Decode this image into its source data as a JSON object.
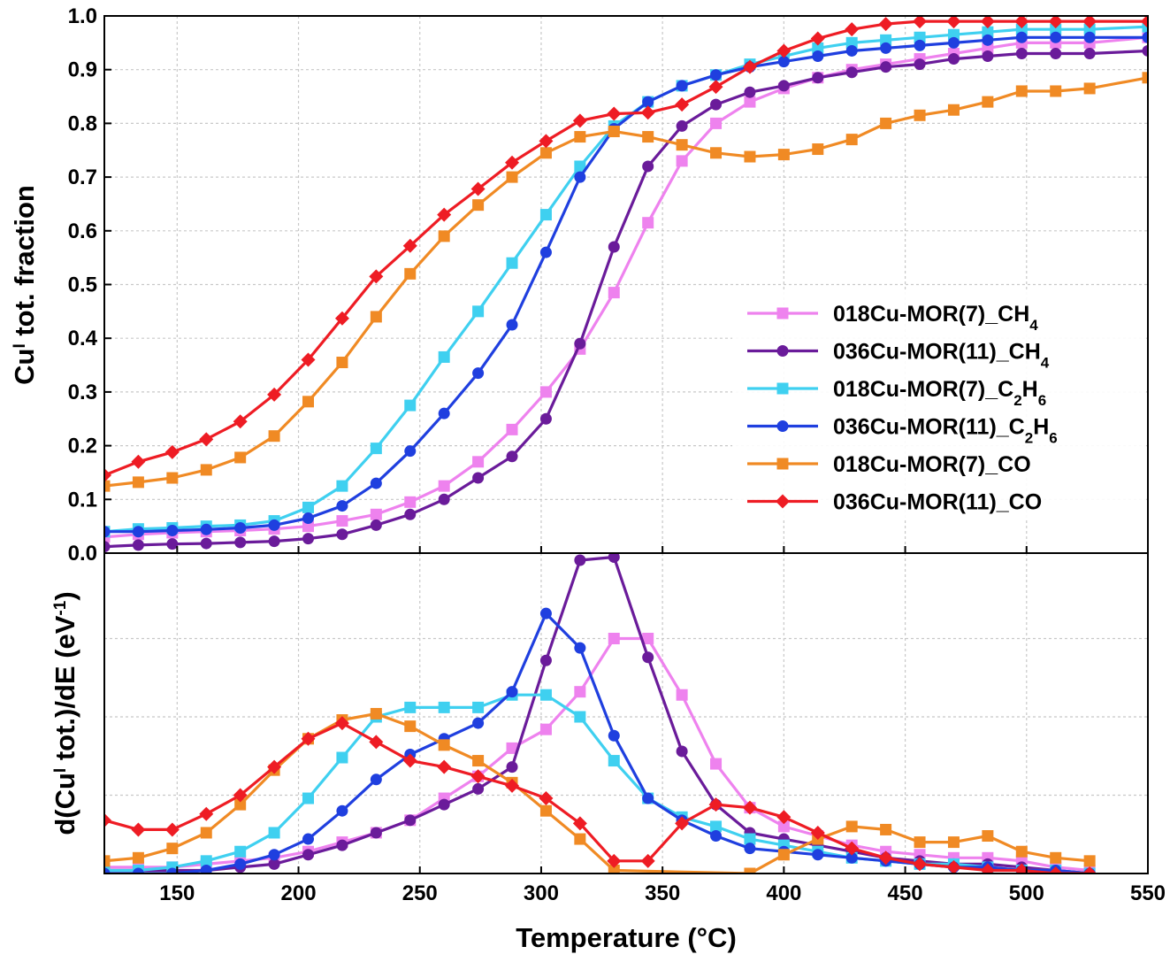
{
  "chart_data": [
    {
      "type": "line",
      "panel": "top",
      "ylabel": "Cu I tot. fraction",
      "ylabel_parts": {
        "main": "Cu",
        "sup": "I",
        "rest": " tot. fraction"
      },
      "xlim": [
        120,
        550
      ],
      "ylim": [
        0.0,
        1.0
      ],
      "y_ticks": [
        "0.0",
        "0.1",
        "0.2",
        "0.3",
        "0.4",
        "0.5",
        "0.6",
        "0.7",
        "0.8",
        "0.9",
        "1.0"
      ],
      "grid": true,
      "legend_position": "right",
      "legend": [
        {
          "series": 0,
          "base": "018Cu-MOR(7)_CH",
          "sub": "4",
          "tail": ""
        },
        {
          "series": 1,
          "base": "036Cu-MOR(11)_CH",
          "sub": "4",
          "tail": ""
        },
        {
          "series": 2,
          "base": "018Cu-MOR(7)_C",
          "sub": "2",
          "tail": "H",
          "sub2": "6"
        },
        {
          "series": 3,
          "base": "036Cu-MOR(11)_C",
          "sub": "2",
          "tail": "H",
          "sub2": "6"
        },
        {
          "series": 4,
          "base": "018Cu-MOR(7)_CO",
          "sub": "",
          "tail": ""
        },
        {
          "series": 5,
          "base": "036Cu-MOR(11)_CO",
          "sub": "",
          "tail": ""
        }
      ],
      "series": [
        {
          "name": "018Cu-MOR(7)_CH4",
          "color": "#ee82ee",
          "marker": "square",
          "x": [
            120,
            134,
            148,
            162,
            176,
            190,
            204,
            218,
            232,
            246,
            260,
            274,
            288,
            302,
            316,
            330,
            344,
            358,
            372,
            386,
            400,
            414,
            428,
            442,
            456,
            470,
            484,
            498,
            512,
            526,
            550
          ],
          "y": [
            0.03,
            0.035,
            0.038,
            0.04,
            0.042,
            0.045,
            0.05,
            0.06,
            0.072,
            0.095,
            0.125,
            0.17,
            0.23,
            0.3,
            0.38,
            0.485,
            0.615,
            0.73,
            0.8,
            0.84,
            0.865,
            0.885,
            0.9,
            0.91,
            0.92,
            0.93,
            0.94,
            0.95,
            0.95,
            0.95,
            0.96
          ]
        },
        {
          "name": "036Cu-MOR(11)_CH4",
          "color": "#6a1b9a",
          "marker": "circle",
          "x": [
            120,
            134,
            148,
            162,
            176,
            190,
            204,
            218,
            232,
            246,
            260,
            274,
            288,
            302,
            316,
            330,
            344,
            358,
            372,
            386,
            400,
            414,
            428,
            442,
            456,
            470,
            484,
            498,
            512,
            526,
            550
          ],
          "y": [
            0.012,
            0.015,
            0.017,
            0.018,
            0.02,
            0.022,
            0.027,
            0.035,
            0.052,
            0.072,
            0.1,
            0.14,
            0.18,
            0.25,
            0.39,
            0.57,
            0.72,
            0.795,
            0.835,
            0.858,
            0.87,
            0.885,
            0.895,
            0.905,
            0.91,
            0.92,
            0.925,
            0.93,
            0.93,
            0.93,
            0.935
          ]
        },
        {
          "name": "018Cu-MOR(7)_C2H6",
          "color": "#3fd0f0",
          "marker": "square",
          "x": [
            120,
            134,
            148,
            162,
            176,
            190,
            204,
            218,
            232,
            246,
            260,
            274,
            288,
            302,
            316,
            330,
            344,
            358,
            372,
            386,
            400,
            414,
            428,
            442,
            456,
            470,
            484,
            498,
            512,
            526,
            550
          ],
          "y": [
            0.04,
            0.045,
            0.047,
            0.05,
            0.052,
            0.06,
            0.085,
            0.125,
            0.195,
            0.275,
            0.365,
            0.45,
            0.54,
            0.63,
            0.72,
            0.795,
            0.84,
            0.87,
            0.89,
            0.91,
            0.925,
            0.94,
            0.95,
            0.955,
            0.96,
            0.965,
            0.97,
            0.975,
            0.975,
            0.975,
            0.98
          ]
        },
        {
          "name": "036Cu-MOR(11)_C2H6",
          "color": "#1f3fdf",
          "marker": "circle",
          "x": [
            120,
            134,
            148,
            162,
            176,
            190,
            204,
            218,
            232,
            246,
            260,
            274,
            288,
            302,
            316,
            330,
            344,
            358,
            372,
            386,
            400,
            414,
            428,
            442,
            456,
            470,
            484,
            498,
            512,
            526,
            550
          ],
          "y": [
            0.04,
            0.04,
            0.042,
            0.044,
            0.047,
            0.052,
            0.065,
            0.088,
            0.13,
            0.19,
            0.26,
            0.335,
            0.425,
            0.56,
            0.7,
            0.79,
            0.84,
            0.87,
            0.89,
            0.905,
            0.915,
            0.925,
            0.935,
            0.94,
            0.945,
            0.95,
            0.955,
            0.96,
            0.96,
            0.96,
            0.96
          ]
        },
        {
          "name": "018Cu-MOR(7)_CO",
          "color": "#f08a24",
          "marker": "square",
          "x": [
            120,
            134,
            148,
            162,
            176,
            190,
            204,
            218,
            232,
            246,
            260,
            274,
            288,
            302,
            316,
            330,
            344,
            358,
            372,
            386,
            400,
            414,
            428,
            442,
            456,
            470,
            484,
            498,
            512,
            526,
            550
          ],
          "y": [
            0.125,
            0.132,
            0.14,
            0.155,
            0.178,
            0.218,
            0.282,
            0.355,
            0.44,
            0.52,
            0.59,
            0.648,
            0.7,
            0.745,
            0.775,
            0.785,
            0.775,
            0.76,
            0.745,
            0.738,
            0.742,
            0.752,
            0.77,
            0.8,
            0.815,
            0.825,
            0.84,
            0.86,
            0.86,
            0.865,
            0.885
          ]
        },
        {
          "name": "036Cu-MOR(11)_CO",
          "color": "#ee1c24",
          "marker": "diamond",
          "x": [
            120,
            134,
            148,
            162,
            176,
            190,
            204,
            218,
            232,
            246,
            260,
            274,
            288,
            302,
            316,
            330,
            344,
            358,
            372,
            386,
            400,
            414,
            428,
            442,
            456,
            470,
            484,
            498,
            512,
            526,
            550
          ],
          "y": [
            0.145,
            0.17,
            0.188,
            0.212,
            0.245,
            0.295,
            0.36,
            0.437,
            0.515,
            0.572,
            0.63,
            0.678,
            0.727,
            0.767,
            0.805,
            0.818,
            0.82,
            0.835,
            0.868,
            0.905,
            0.935,
            0.958,
            0.975,
            0.985,
            0.99,
            0.99,
            0.99,
            0.99,
            0.99,
            0.99,
            0.99
          ]
        }
      ]
    },
    {
      "type": "line",
      "panel": "bottom",
      "xlabel": "Temperature (°C)",
      "ylabel": "d(Cu I tot.)/dE (eV-1)",
      "ylabel_parts": {
        "a": "d(Cu",
        "sup1": "I",
        "b": " tot.)/dE (eV",
        "sup2": "-1",
        "c": ")"
      },
      "xlim": [
        120,
        550
      ],
      "x_ticks": [
        "150",
        "200",
        "250",
        "300",
        "350",
        "400",
        "450",
        "500",
        "550"
      ],
      "ylim": [
        0,
        100
      ],
      "y_tick_labels": false,
      "grid": true,
      "series": [
        {
          "name": "018Cu-MOR(7)_CH4",
          "color": "#ee82ee",
          "marker": "square",
          "x": [
            120,
            134,
            148,
            162,
            176,
            190,
            204,
            218,
            232,
            246,
            260,
            274,
            288,
            302,
            316,
            330,
            344,
            358,
            372,
            386,
            400,
            414,
            428,
            442,
            456,
            470,
            484,
            498,
            512,
            526
          ],
          "y": [
            2,
            2,
            2,
            3,
            4,
            5,
            7,
            10,
            13,
            17,
            24,
            31,
            40,
            46,
            58,
            75,
            75,
            57,
            35,
            21,
            15,
            12,
            9,
            7,
            6,
            5,
            5,
            4,
            2,
            1
          ]
        },
        {
          "name": "036Cu-MOR(11)_CH4",
          "color": "#6a1b9a",
          "marker": "circle",
          "x": [
            120,
            134,
            148,
            162,
            176,
            190,
            204,
            218,
            232,
            246,
            260,
            274,
            288,
            302,
            316,
            330,
            344,
            358,
            372,
            386,
            400,
            414,
            428,
            442,
            456,
            470,
            484,
            498,
            512,
            526
          ],
          "y": [
            1,
            1,
            1,
            1,
            2,
            3,
            6,
            9,
            13,
            17,
            22,
            27,
            34,
            68,
            100,
            101,
            69,
            39,
            22,
            13,
            11,
            9,
            7,
            5,
            4,
            3,
            3,
            2,
            1,
            0
          ]
        },
        {
          "name": "018Cu-MOR(7)_C2H6",
          "color": "#3fd0f0",
          "marker": "square",
          "x": [
            120,
            134,
            148,
            162,
            176,
            190,
            204,
            218,
            232,
            246,
            260,
            274,
            288,
            302,
            316,
            330,
            344,
            358,
            372,
            386,
            400,
            414,
            428,
            442,
            456,
            470,
            484,
            498,
            512,
            526
          ],
          "y": [
            1,
            1,
            2,
            4,
            7,
            13,
            24,
            37,
            50,
            53,
            53,
            53,
            57,
            57,
            50,
            36,
            24,
            18,
            15,
            11,
            9,
            7,
            5,
            4,
            3,
            3,
            2,
            1,
            1,
            0
          ]
        },
        {
          "name": "036Cu-MOR(11)_C2H6",
          "color": "#1f3fdf",
          "marker": "circle",
          "x": [
            120,
            134,
            148,
            162,
            176,
            190,
            204,
            218,
            232,
            246,
            260,
            274,
            288,
            302,
            316,
            330,
            344,
            358,
            372,
            386,
            400,
            414,
            428,
            442,
            456,
            470,
            484,
            498,
            512,
            526
          ],
          "y": [
            0,
            0,
            0,
            1,
            3,
            6,
            11,
            20,
            30,
            38,
            43,
            48,
            58,
            83,
            72,
            44,
            24,
            17,
            12,
            8,
            7,
            6,
            5,
            4,
            3,
            2,
            2,
            1,
            1,
            0
          ]
        },
        {
          "name": "018Cu-MOR(7)_CO",
          "color": "#f08a24",
          "marker": "square",
          "x": [
            120,
            134,
            148,
            162,
            176,
            190,
            204,
            218,
            232,
            246,
            260,
            274,
            288,
            302,
            316,
            330,
            386,
            400,
            414,
            428,
            442,
            456,
            470,
            484,
            498,
            512,
            526
          ],
          "y": [
            4,
            5,
            8,
            13,
            22,
            33,
            43,
            49,
            51,
            47,
            41,
            36,
            29,
            20,
            11,
            1,
            0,
            6,
            11,
            15,
            14,
            10,
            10,
            12,
            7,
            5,
            4
          ]
        },
        {
          "name": "036Cu-MOR(11)_CO",
          "color": "#ee1c24",
          "marker": "diamond",
          "x": [
            120,
            134,
            148,
            162,
            176,
            190,
            204,
            218,
            232,
            246,
            260,
            274,
            288,
            302,
            316,
            330,
            344,
            358,
            372,
            386,
            400,
            414,
            428,
            442,
            456,
            470,
            484,
            498,
            512,
            526
          ],
          "y": [
            17,
            14,
            14,
            19,
            25,
            34,
            43,
            48,
            42,
            36,
            34,
            31,
            28,
            24,
            16,
            4,
            4,
            16,
            22,
            21,
            18,
            13,
            8,
            5,
            3,
            2,
            1,
            1,
            0,
            0
          ]
        }
      ]
    }
  ]
}
